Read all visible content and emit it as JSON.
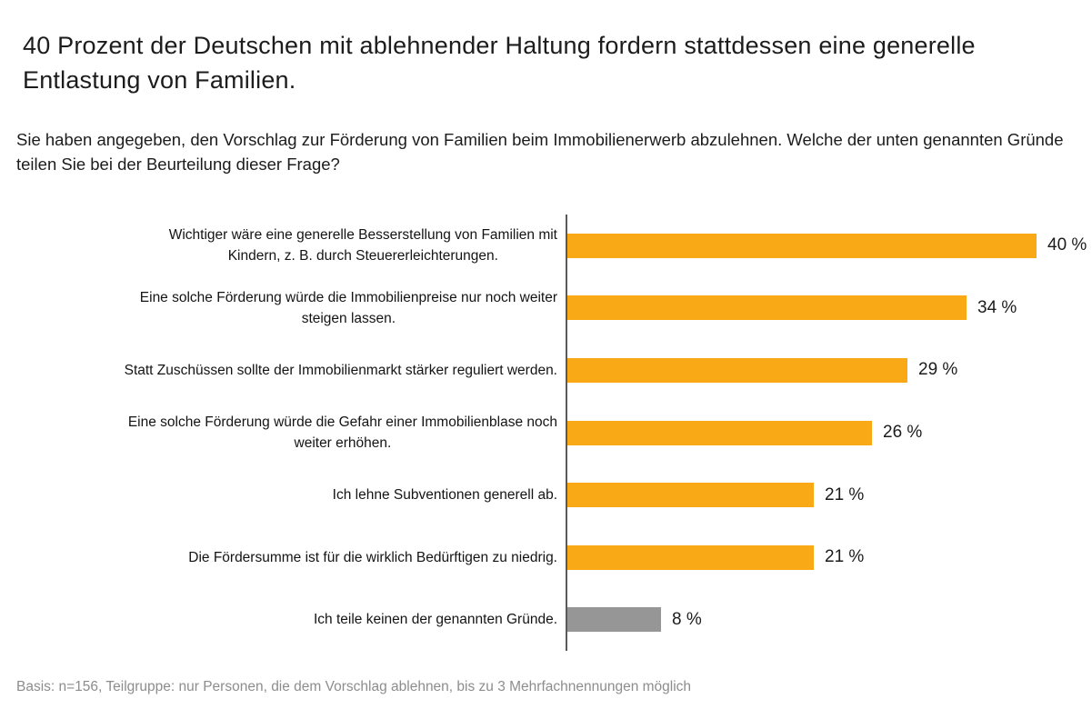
{
  "title": "40 Prozent der Deutschen mit ablehnender Haltung fordern stattdessen eine generelle Entlastung von Familien.",
  "subtitle": "Sie haben angegeben, den Vorschlag zur Förderung von Familien beim Immobilienerwerb abzulehnen. Welche der unten genannten Gründe teilen Sie bei der Beurteilung dieser Frage?",
  "footnote": "Basis: n=156, Teilgruppe: nur Personen, die dem Vorschlag ablehnen, bis zu 3 Mehrfachnennungen möglich",
  "chart_data": {
    "type": "bar",
    "orientation": "horizontal",
    "title": "40 Prozent der Deutschen mit ablehnender Haltung fordern stattdessen eine generelle Entlastung von Familien.",
    "xlabel": "",
    "ylabel": "",
    "xlim": [
      0,
      44
    ],
    "grid": false,
    "legend": "none",
    "categories": [
      "Wichtiger wäre eine generelle Besserstellung von Familien mit\nKindern, z. B. durch Steuererleichterungen.",
      "Eine solche Förderung würde die Immobilienpreise nur noch weiter\nsteigen lassen.",
      "Statt Zuschüssen sollte der Immobilienmarkt stärker reguliert werden.",
      "Eine solche Förderung würde die Gefahr einer Immobilienblase noch\nweiter erhöhen.",
      "Ich lehne Subventionen generell ab.",
      "Die Fördersumme ist für die wirklich Bedürftigen zu niedrig.",
      "Ich teile keinen der genannten Gründe."
    ],
    "values": [
      40,
      34,
      29,
      26,
      21,
      21,
      8
    ],
    "value_labels": [
      "40 %",
      "34 %",
      "29 %",
      "26 %",
      "21 %",
      "21 %",
      "8 %"
    ],
    "bar_colors": [
      "#FAA916",
      "#FAA916",
      "#FAA916",
      "#FAA916",
      "#FAA916",
      "#FAA916",
      "#969696"
    ],
    "colors": {
      "bar": "#FAA916",
      "muted_bar": "#969696",
      "axis": "#595959",
      "text": "#1c1c1c",
      "footnote": "#8d8d8d"
    }
  }
}
